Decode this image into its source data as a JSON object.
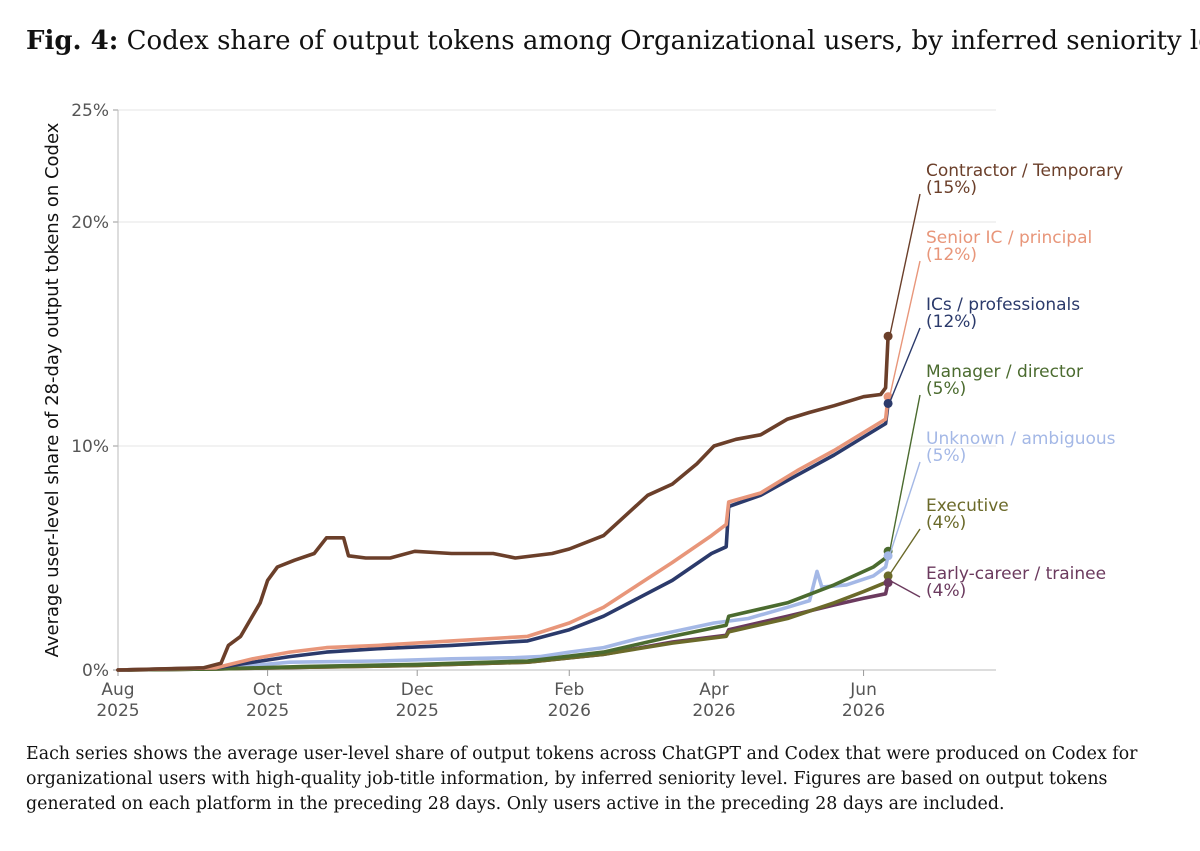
{
  "figure": {
    "label": "Fig. 4:",
    "title": "Codex share of output tokens among Organizational users, by inferred seniority level",
    "caption": "Each series shows the average user-level share of output tokens across ChatGPT and Codex that were produced on Codex for organizational users with high-quality job-title information, by inferred seniority level. Figures are based on output tokens generated on each platform in the preceding 28 days. Only users active in the preceding 28 days are included."
  },
  "chart_data": {
    "type": "line",
    "title": "Codex share of output tokens among Organizational users, by inferred seniority level",
    "ylabel": "Average user-level share of 28-day output tokens on Codex",
    "xlabel": "",
    "x_range": [
      "2025-08-01",
      "2026-07-25"
    ],
    "ylim": [
      0,
      25
    ],
    "y_ticks": [
      {
        "value": 0,
        "label": "0%"
      },
      {
        "value": 10,
        "label": "10%"
      },
      {
        "value": 20,
        "label": "20%"
      },
      {
        "value": 25,
        "label": "25%"
      }
    ],
    "x_ticks": [
      {
        "date": "2025-08-01",
        "month": "Aug",
        "year": "2025"
      },
      {
        "date": "2025-10-01",
        "month": "Oct",
        "year": "2025"
      },
      {
        "date": "2025-12-01",
        "month": "Dec",
        "year": "2025"
      },
      {
        "date": "2026-02-01",
        "month": "Feb",
        "year": "2026"
      },
      {
        "date": "2026-04-01",
        "month": "Apr",
        "year": "2026"
      },
      {
        "date": "2026-06-01",
        "month": "Jun",
        "year": "2026"
      }
    ],
    "grid": true,
    "legend": "direct labels at right end of each line",
    "series": [
      {
        "name": "Contractor / Temporary",
        "end_label": "(15%)",
        "color": "#6b3f2a",
        "points": [
          [
            "2025-08-01",
            0
          ],
          [
            "2025-09-05",
            0.1
          ],
          [
            "2025-09-12",
            0.3
          ],
          [
            "2025-09-15",
            1.1
          ],
          [
            "2025-09-20",
            1.5
          ],
          [
            "2025-09-28",
            3.0
          ],
          [
            "2025-10-01",
            4.0
          ],
          [
            "2025-10-05",
            4.6
          ],
          [
            "2025-10-12",
            4.9
          ],
          [
            "2025-10-20",
            5.2
          ],
          [
            "2025-10-25",
            5.9
          ],
          [
            "2025-11-01",
            5.9
          ],
          [
            "2025-11-03",
            5.1
          ],
          [
            "2025-11-10",
            5.0
          ],
          [
            "2025-11-20",
            5.0
          ],
          [
            "2025-11-30",
            5.3
          ],
          [
            "2025-12-15",
            5.2
          ],
          [
            "2026-01-01",
            5.2
          ],
          [
            "2026-01-10",
            5.0
          ],
          [
            "2026-01-25",
            5.2
          ],
          [
            "2026-02-01",
            5.4
          ],
          [
            "2026-02-15",
            6.0
          ],
          [
            "2026-02-25",
            7.0
          ],
          [
            "2026-03-05",
            7.8
          ],
          [
            "2026-03-15",
            8.3
          ],
          [
            "2026-03-25",
            9.2
          ],
          [
            "2026-04-01",
            10.0
          ],
          [
            "2026-04-10",
            10.3
          ],
          [
            "2026-04-20",
            10.5
          ],
          [
            "2026-05-01",
            11.2
          ],
          [
            "2026-05-10",
            11.5
          ],
          [
            "2026-05-20",
            11.8
          ],
          [
            "2026-06-01",
            12.2
          ],
          [
            "2026-06-08",
            12.3
          ],
          [
            "2026-06-10",
            12.6
          ],
          [
            "2026-06-11",
            14.9
          ]
        ]
      },
      {
        "name": "Senior IC / principal",
        "end_label": "(12%)",
        "color": "#e8967a",
        "points": [
          [
            "2025-08-01",
            0
          ],
          [
            "2025-09-10",
            0.1
          ],
          [
            "2025-09-25",
            0.5
          ],
          [
            "2025-10-10",
            0.8
          ],
          [
            "2025-10-25",
            1.0
          ],
          [
            "2025-11-15",
            1.1
          ],
          [
            "2025-12-15",
            1.3
          ],
          [
            "2026-01-15",
            1.5
          ],
          [
            "2026-02-01",
            2.1
          ],
          [
            "2026-02-15",
            2.8
          ],
          [
            "2026-03-01",
            3.8
          ],
          [
            "2026-03-15",
            4.8
          ],
          [
            "2026-03-31",
            6.0
          ],
          [
            "2026-04-06",
            6.5
          ],
          [
            "2026-04-07",
            7.5
          ],
          [
            "2026-04-20",
            7.9
          ],
          [
            "2026-05-05",
            8.9
          ],
          [
            "2026-05-20",
            9.8
          ],
          [
            "2026-06-01",
            10.6
          ],
          [
            "2026-06-10",
            11.2
          ],
          [
            "2026-06-11",
            12.2
          ]
        ]
      },
      {
        "name": "ICs / professionals",
        "end_label": "(12%)",
        "color": "#2b3a6b",
        "points": [
          [
            "2025-08-01",
            0
          ],
          [
            "2025-09-10",
            0.1
          ],
          [
            "2025-09-25",
            0.35
          ],
          [
            "2025-10-10",
            0.6
          ],
          [
            "2025-10-25",
            0.8
          ],
          [
            "2025-11-15",
            0.95
          ],
          [
            "2025-12-15",
            1.1
          ],
          [
            "2026-01-15",
            1.3
          ],
          [
            "2026-02-01",
            1.8
          ],
          [
            "2026-02-15",
            2.4
          ],
          [
            "2026-03-01",
            3.2
          ],
          [
            "2026-03-15",
            4.0
          ],
          [
            "2026-03-31",
            5.2
          ],
          [
            "2026-04-06",
            5.5
          ],
          [
            "2026-04-07",
            7.3
          ],
          [
            "2026-04-20",
            7.8
          ],
          [
            "2026-05-05",
            8.7
          ],
          [
            "2026-05-20",
            9.6
          ],
          [
            "2026-06-01",
            10.4
          ],
          [
            "2026-06-10",
            11.0
          ],
          [
            "2026-06-11",
            11.9
          ]
        ]
      },
      {
        "name": "Manager / director",
        "end_label": "(5%)",
        "color": "#4b6b2f",
        "points": [
          [
            "2025-08-01",
            0
          ],
          [
            "2025-09-10",
            0.05
          ],
          [
            "2025-10-15",
            0.15
          ],
          [
            "2025-12-01",
            0.25
          ],
          [
            "2026-01-15",
            0.4
          ],
          [
            "2026-02-15",
            0.8
          ],
          [
            "2026-03-15",
            1.5
          ],
          [
            "2026-04-06",
            2.0
          ],
          [
            "2026-04-07",
            2.4
          ],
          [
            "2026-05-01",
            3.0
          ],
          [
            "2026-05-20",
            3.8
          ],
          [
            "2026-06-05",
            4.6
          ],
          [
            "2026-06-10",
            5.0
          ],
          [
            "2026-06-11",
            5.3
          ]
        ]
      },
      {
        "name": "Unknown / ambiguous",
        "end_label": "(5%)",
        "color": "#a4b8e6",
        "points": [
          [
            "2025-08-01",
            0
          ],
          [
            "2025-09-10",
            0.1
          ],
          [
            "2025-09-25",
            0.2
          ],
          [
            "2025-10-10",
            0.35
          ],
          [
            "2025-11-15",
            0.4
          ],
          [
            "2025-12-15",
            0.5
          ],
          [
            "2026-01-10",
            0.55
          ],
          [
            "2026-01-20",
            0.6
          ],
          [
            "2026-02-01",
            0.8
          ],
          [
            "2026-02-15",
            1.0
          ],
          [
            "2026-03-01",
            1.4
          ],
          [
            "2026-03-15",
            1.7
          ],
          [
            "2026-04-01",
            2.1
          ],
          [
            "2026-04-15",
            2.3
          ],
          [
            "2026-05-01",
            2.8
          ],
          [
            "2026-05-10",
            3.1
          ],
          [
            "2026-05-13",
            4.4
          ],
          [
            "2026-05-15",
            3.7
          ],
          [
            "2026-05-25",
            3.8
          ],
          [
            "2026-06-05",
            4.2
          ],
          [
            "2026-06-10",
            4.6
          ],
          [
            "2026-06-11",
            5.1
          ]
        ]
      },
      {
        "name": "Executive",
        "end_label": "(4%)",
        "color": "#6b6a2a",
        "points": [
          [
            "2025-08-01",
            0
          ],
          [
            "2025-09-10",
            0.05
          ],
          [
            "2025-10-15",
            0.12
          ],
          [
            "2025-12-01",
            0.2
          ],
          [
            "2026-01-15",
            0.35
          ],
          [
            "2026-02-15",
            0.7
          ],
          [
            "2026-03-15",
            1.2
          ],
          [
            "2026-04-06",
            1.5
          ],
          [
            "2026-04-07",
            1.7
          ],
          [
            "2026-05-01",
            2.3
          ],
          [
            "2026-05-20",
            3.0
          ],
          [
            "2026-06-01",
            3.5
          ],
          [
            "2026-06-10",
            3.9
          ],
          [
            "2026-06-11",
            4.2
          ]
        ]
      },
      {
        "name": "Early-career / trainee",
        "end_label": "(4%)",
        "color": "#6b3a5e",
        "points": [
          [
            "2025-08-01",
            0
          ],
          [
            "2025-09-10",
            0.05
          ],
          [
            "2025-10-15",
            0.12
          ],
          [
            "2025-12-01",
            0.2
          ],
          [
            "2026-01-15",
            0.35
          ],
          [
            "2026-02-15",
            0.7
          ],
          [
            "2026-03-15",
            1.25
          ],
          [
            "2026-04-06",
            1.55
          ],
          [
            "2026-04-07",
            1.8
          ],
          [
            "2026-05-01",
            2.4
          ],
          [
            "2026-05-20",
            2.9
          ],
          [
            "2026-06-01",
            3.2
          ],
          [
            "2026-06-10",
            3.4
          ],
          [
            "2026-06-11",
            3.9
          ]
        ]
      }
    ]
  }
}
